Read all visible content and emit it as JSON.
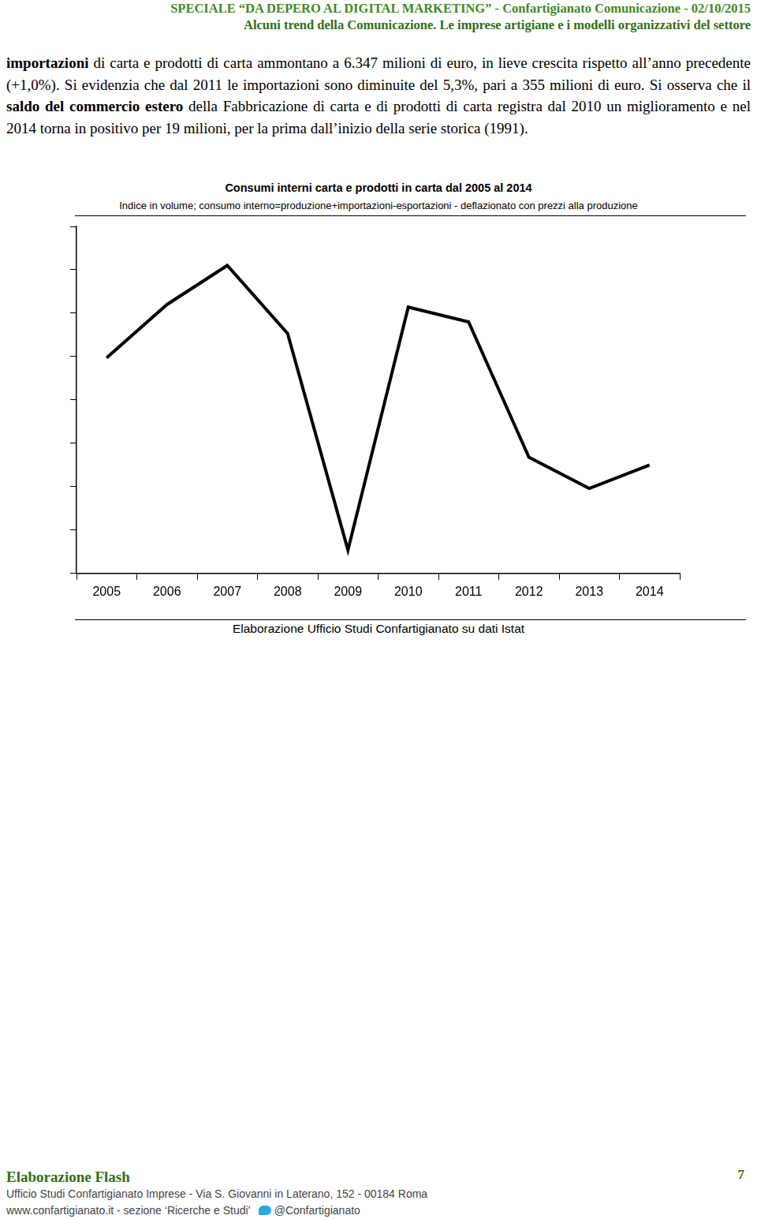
{
  "header": {
    "line1": "SPECIALE “DA DEPERO AL DIGITAL MARKETING” - Confartigianato Comunicazione - 02/10/2015",
    "line2": "Alcuni trend della Comunicazione. Le imprese artigiane e i modelli organizzativi del settore"
  },
  "paragraph": [
    {
      "text": "importazioni",
      "bold": true
    },
    {
      "text": " di carta e prodotti di carta ammontano a 6.347 milioni di euro, in lieve crescita rispetto all’anno precedente (+1,0%). Si evidenzia che dal 2011 le importazioni sono diminuite del 5,3%, pari a 355 milioni di euro. Si osserva che il ",
      "bold": false
    },
    {
      "text": "saldo del commercio estero",
      "bold": true
    },
    {
      "text": " della Fabbricazione di carta e di prodotti di carta registra dal 2010 un miglioramento e nel 2014 torna in positivo per 19 milioni, per la prima dall’inizio della serie storica (1991).",
      "bold": false
    }
  ],
  "chart_data": {
    "type": "line",
    "title": "Consumi interni carta e prodotti in carta dal 2005 al 2014",
    "subtitle": "Indice in volume; consumo interno=produzione+importazioni-esportazioni - deflazionato con prezzi alla produzione",
    "categories": [
      "2005",
      "2006",
      "2007",
      "2008",
      "2009",
      "2010",
      "2011",
      "2012",
      "2013",
      "2014"
    ],
    "values": [
      4.97,
      6.2,
      7.1,
      5.53,
      0.54,
      6.14,
      5.8,
      2.68,
      1.96,
      2.5
    ],
    "color": "#000000",
    "ylim": [
      0,
      8
    ],
    "yticks": [
      0,
      1,
      2,
      3,
      4,
      5,
      6,
      7,
      8
    ],
    "grid": false,
    "tick_labels": "x",
    "source": "Elaborazione Ufficio Studi Confartigianato su dati Istat"
  },
  "footer": {
    "title": "Elaborazione Flash",
    "page": "7",
    "address": "Ufficio Studi Confartigianato Imprese - Via S. Giovanni in Laterano, 152 - 00184 Roma",
    "website": "www.confartigianato.it - sezione ‘Ricerche e Studi’",
    "twitter": "@Confartigianato"
  }
}
